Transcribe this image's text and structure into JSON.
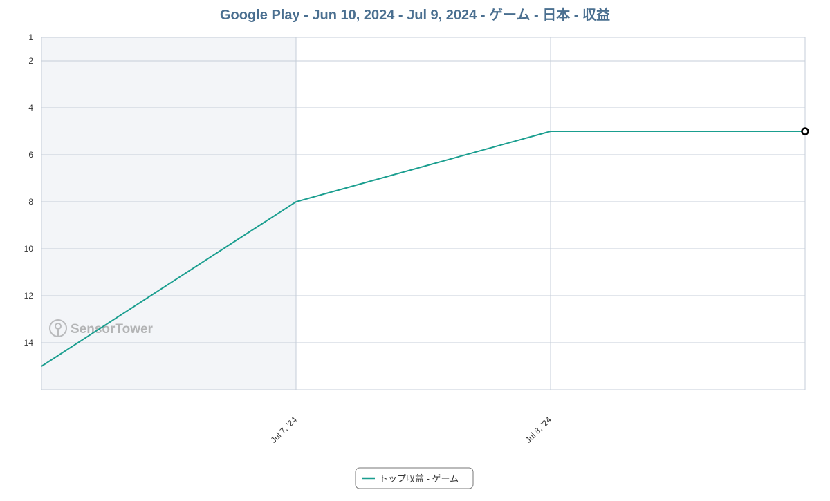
{
  "chart_data": {
    "type": "line",
    "title": "Google Play - Jun 10, 2024 - Jul 9, 2024 - ゲーム - 日本 - 収益",
    "categories": [
      null,
      "Jul 7, '24",
      "Jul 8, '24",
      null
    ],
    "series": [
      {
        "name": "トップ収益 - ゲーム",
        "color": "#1a9e8f",
        "values": [
          15,
          8,
          5,
          5
        ]
      }
    ],
    "ylim": [
      1,
      16
    ],
    "y_inverted": true,
    "yticks": [
      1,
      2,
      4,
      6,
      8,
      10,
      12,
      14
    ],
    "grid": true,
    "legend": "bottom",
    "watermark": "SensorTower"
  }
}
